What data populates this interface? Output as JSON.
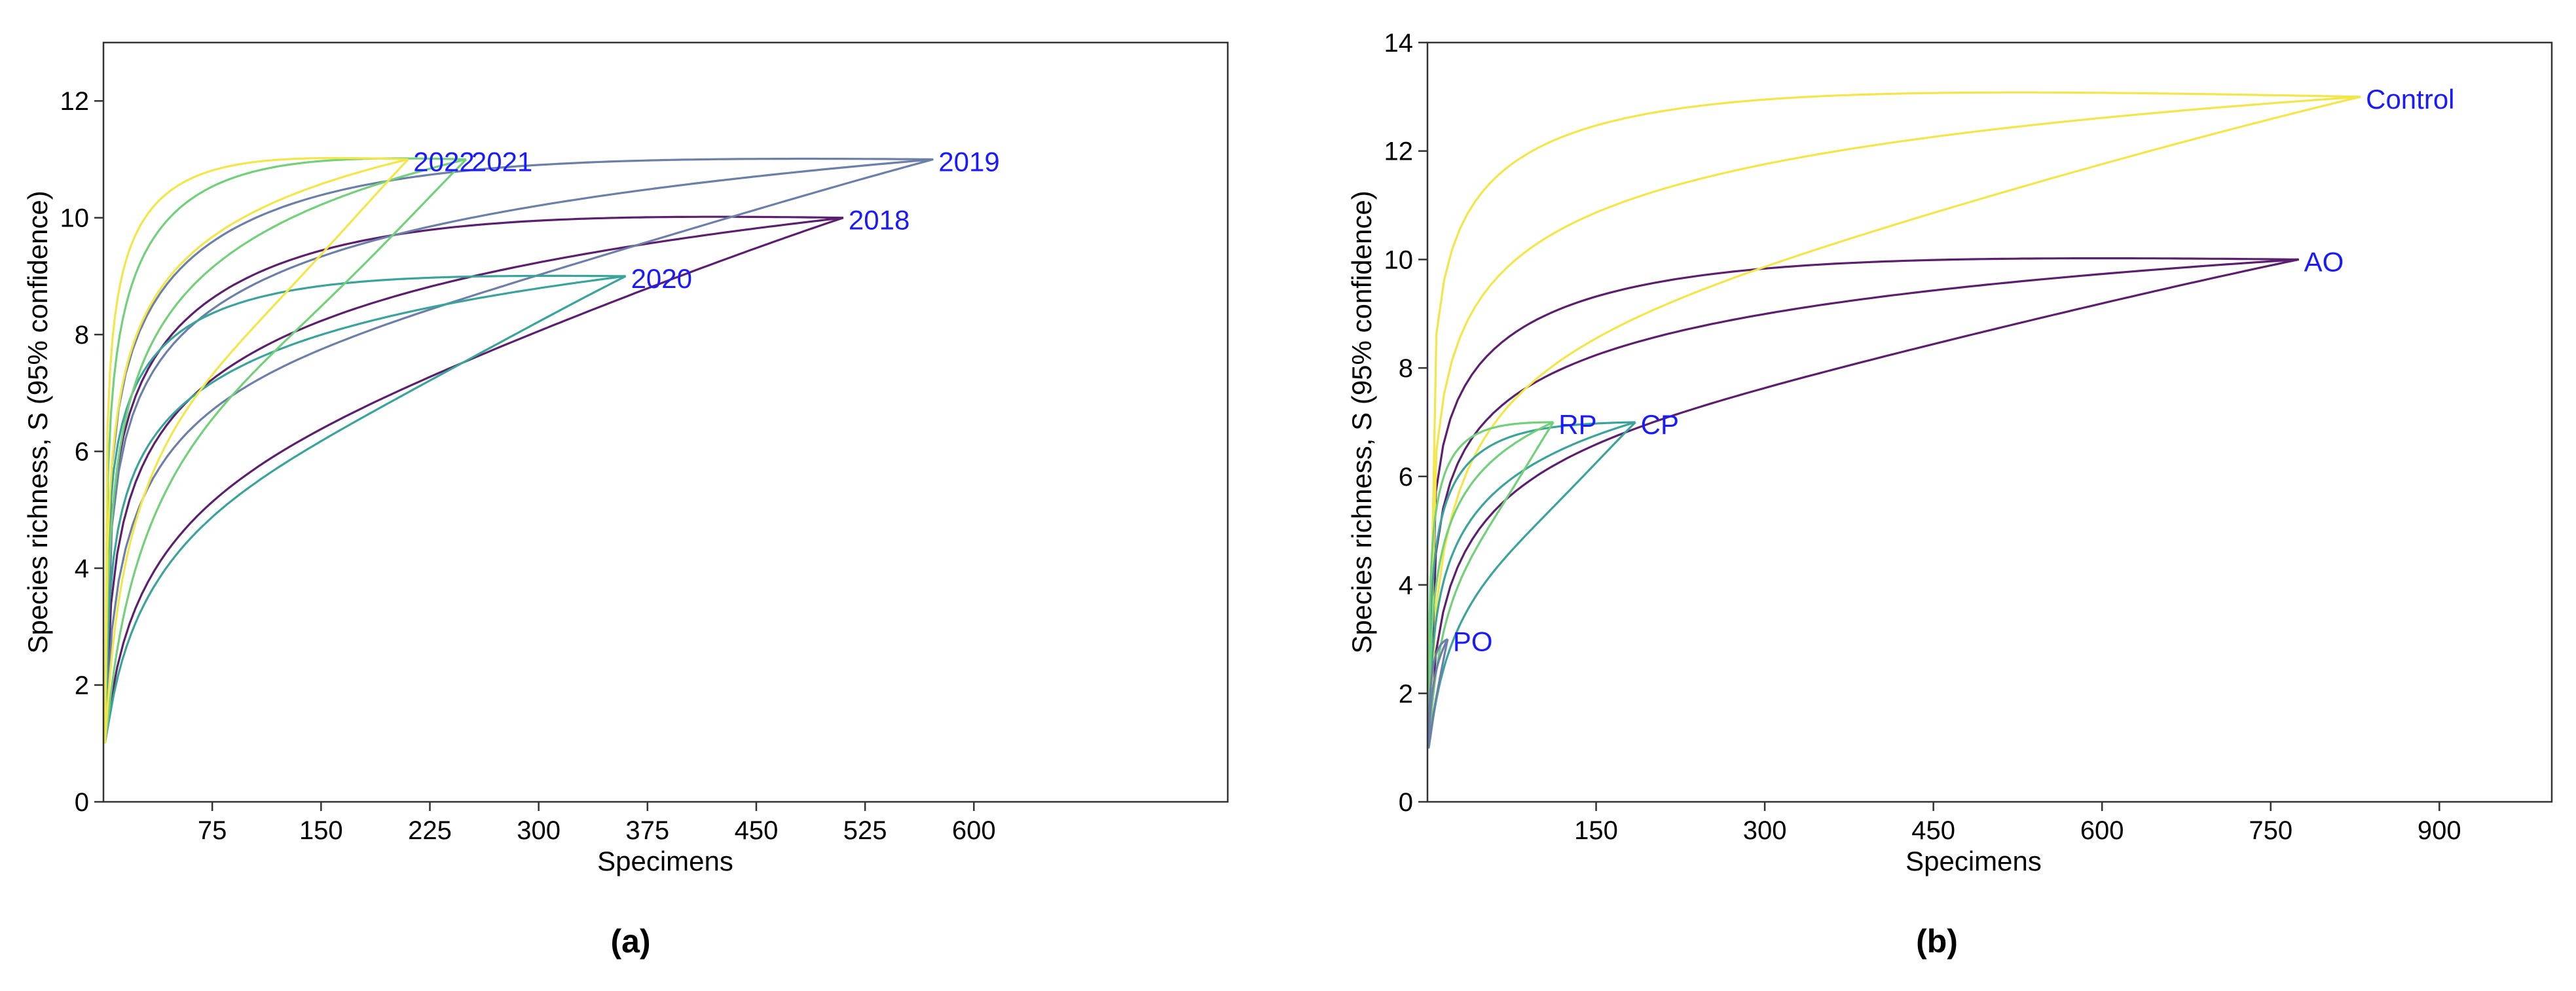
{
  "chart_data": [
    {
      "type": "line",
      "panel": "(a)",
      "subtitle": "(a)",
      "title": "",
      "xlabel": "Specimens",
      "ylabel": "Species richness, S (95% confidence)",
      "xlim": [
        0,
        775
      ],
      "ylim": [
        0,
        13
      ],
      "xticks": [
        75,
        150,
        225,
        300,
        375,
        450,
        525,
        600
      ],
      "yticks": [
        0,
        2,
        4,
        6,
        8,
        10,
        12
      ],
      "label_color": "#1a1aff",
      "series": [
        {
          "name": "2018",
          "color": "#5b1f6e",
          "n": 510,
          "s": 10,
          "mean_a": 1.0,
          "upper_a": 1.45,
          "upper_p": 1.9,
          "lower_a": 0.55,
          "lower_p": 1.35
        },
        {
          "name": "2019",
          "color": "#6b7fa8",
          "n": 572,
          "s": 11,
          "mean_a": 1.3,
          "upper_a": 1.6,
          "upper_p": 2.2,
          "lower_a": 0.8,
          "lower_p": 1.3
        },
        {
          "name": "2020",
          "color": "#3aa39a",
          "n": 360,
          "s": 9,
          "mean_a": 1.2,
          "upper_a": 1.8,
          "upper_p": 2.4,
          "lower_a": 0.5,
          "lower_p": 1.1
        },
        {
          "name": "2021",
          "color": "#72d07a",
          "n": 250,
          "s": 11,
          "mean_a": 1.2,
          "upper_a": 1.9,
          "upper_p": 2.2,
          "lower_a": 0.5,
          "lower_p": 0.9
        },
        {
          "name": "2022",
          "color": "#f2e64a",
          "n": 210,
          "s": 11,
          "mean_a": 1.5,
          "upper_a": 2.4,
          "upper_p": 2.6,
          "lower_a": 0.6,
          "lower_p": 1.0
        }
      ]
    },
    {
      "type": "line",
      "panel": "(b)",
      "subtitle": "(b)",
      "title": "",
      "xlabel": "Specimens",
      "ylabel": "Species richness, S (95% confidence)",
      "xlim": [
        0,
        1000
      ],
      "ylim": [
        0,
        14
      ],
      "xticks": [
        150,
        300,
        450,
        600,
        750,
        900
      ],
      "yticks": [
        0,
        2,
        4,
        6,
        8,
        10,
        12,
        14
      ],
      "label_color": "#1a1aff",
      "series": [
        {
          "name": "AO",
          "color": "#5b1f6e",
          "n": 775,
          "s": 10,
          "mean_a": 1.3,
          "upper_a": 1.7,
          "upper_p": 2.3,
          "lower_a": 0.75,
          "lower_p": 1.4
        },
        {
          "name": "Control",
          "color": "#f2e64a",
          "n": 830,
          "s": 13,
          "mean_a": 1.5,
          "upper_a": 2.3,
          "upper_p": 2.6,
          "lower_a": 0.8,
          "lower_p": 1.5
        },
        {
          "name": "CP",
          "color": "#3aa39a",
          "n": 185,
          "s": 7,
          "mean_a": 1.0,
          "upper_a": 1.6,
          "upper_p": 2.4,
          "lower_a": 0.5,
          "lower_p": 1.0
        },
        {
          "name": "RP",
          "color": "#72d07a",
          "n": 112,
          "s": 7,
          "mean_a": 1.2,
          "upper_a": 2.0,
          "upper_p": 2.5,
          "lower_a": 0.6,
          "lower_p": 1.0
        },
        {
          "name": "PO",
          "color": "#6b7fa8",
          "n": 18,
          "s": 3,
          "mean_a": 1.0,
          "upper_a": 1.3,
          "upper_p": 2.0,
          "lower_a": 0.6,
          "lower_p": 1.2
        }
      ]
    }
  ]
}
